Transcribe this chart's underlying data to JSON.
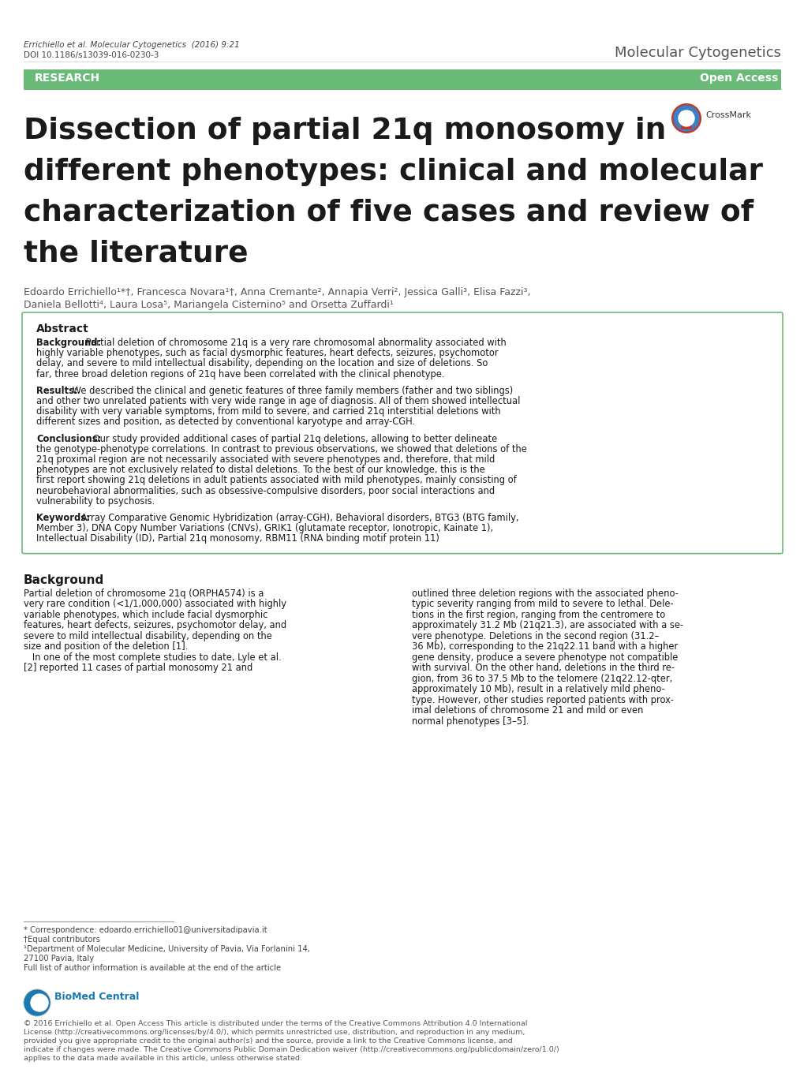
{
  "bg_color": "#ffffff",
  "header_citation": "Errichiello et al. Molecular Cytogenetics  (2016) 9:21",
  "header_doi": "DOI 10.1186/s13039-016-0230-3",
  "header_journal": "Molecular Cytogenetics",
  "research_bar_color": "#6aba78",
  "research_text": "RESEARCH",
  "open_access_text": "Open Access",
  "main_title_line1": "Dissection of partial 21q monosomy in",
  "main_title_line2": "different phenotypes: clinical and molecular",
  "main_title_line3": "characterization of five cases and review of",
  "main_title_line4": "the literature",
  "authors_line1": "Edoardo Errichiello¹*†, Francesca Novara¹†, Anna Cremante², Annapia Verri², Jessica Galli³, Elisa Fazzi³,",
  "authors_line2": "Daniela Bellotti⁴, Laura Losa⁵, Mariangela Cisternino⁵ and Orsetta Zuffardi¹",
  "abstract_box_border": "#6aba78",
  "abstract_title": "Abstract",
  "background_label": "Background:",
  "background_text": "Partial deletion of chromosome 21q is a very rare chromosomal abnormality associated with highly variable phenotypes, such as facial dysmorphic features, heart defects, seizures, psychomotor delay, and severe to mild intellectual disability, depending on the location and size of deletions. So far, three broad deletion regions of 21q have been correlated with the clinical phenotype.",
  "results_label": "Results:",
  "results_text": "We described the clinical and genetic features of three family members (father and two siblings) and other two unrelated patients with very wide range in age of diagnosis. All of them showed intellectual disability with very variable symptoms, from mild to severe, and carried 21q interstitial deletions with different sizes and position, as detected by conventional karyotype and array-CGH.",
  "conclusions_label": "Conclusions:",
  "conclusions_text": "Our study provided additional cases of partial 21q deletions, allowing to better delineate the genotype-phenotype correlations. In contrast to previous observations, we showed that deletions of the 21q proximal region are not necessarily associated with severe phenotypes and, therefore, that mild phenotypes are not exclusively related to distal deletions. To the best of our knowledge, this is the first report showing 21q deletions in adult patients associated with mild phenotypes, mainly consisting of neurobehavioral abnormalities, such as obsessive-compulsive disorders, poor social interactions and vulnerability to psychosis.",
  "keywords_label": "Keywords:",
  "keywords_text": "Array Comparative Genomic Hybridization (array-CGH), Behavioral disorders, BTG3 (BTG family, Member 3), DNA Copy Number Variations (CNVs), GRIK1 (glutamate receptor, Ionotropic, Kainate 1), Intellectual Disability (ID), Partial 21q monosomy, RBM11 (RNA binding motif protein 11)",
  "background_section_title": "Background",
  "footer_correspondence": "* Correspondence: edoardo.errichiello01@universitadipavia.it",
  "footer_equal": "†Equal contributors",
  "footer_dept": "¹Department of Molecular Medicine, University of Pavia, Via Forlanini 14,",
  "footer_city": "27100 Pavia, Italy",
  "footer_full": "Full list of author information is available at the end of the article",
  "biomedcentral_text": "© 2016 Errichiello et al. Open Access This article is distributed under the terms of the Creative Commons Attribution 4.0 International License (http://creativecommons.org/licenses/by/4.0/), which permits unrestricted use, distribution, and reproduction in any medium, provided you give appropriate credit to the original author(s) and the source, provide a link to the Creative Commons license, and indicate if changes were made. The Creative Commons Public Domain Dedication waiver (http://creativecommons.org/publicdomain/zero/1.0/) applies to the data made available in this article, unless otherwise stated.",
  "left_col_lines": [
    "Partial deletion of chromosome 21q (ORPHA574) is a",
    "very rare condition (<1/1,000,000) associated with highly",
    "variable phenotypes, which include facial dysmorphic",
    "features, heart defects, seizures, psychomotor delay, and",
    "severe to mild intellectual disability, depending on the",
    "size and position of the deletion [1].",
    "   In one of the most complete studies to date, Lyle et al.",
    "[2] reported 11 cases of partial monosomy 21 and"
  ],
  "right_col_lines": [
    "outlined three deletion regions with the associated pheno-",
    "typic severity ranging from mild to severe to lethal. Dele-",
    "tions in the first region, ranging from the centromere to",
    "approximately 31.2 Mb (21q21.3), are associated with a se-",
    "vere phenotype. Deletions in the second region (31.2–",
    "36 Mb), corresponding to the 21q22.11 band with a higher",
    "gene density, produce a severe phenotype not compatible",
    "with survival. On the other hand, deletions in the third re-",
    "gion, from 36 to 37.5 Mb to the telomere (21q22.12-qter,",
    "approximately 10 Mb), result in a relatively mild pheno-",
    "type. However, other studies reported patients with prox-",
    "imal deletions of chromosome 21 and mild or even",
    "normal phenotypes [3–5]."
  ]
}
